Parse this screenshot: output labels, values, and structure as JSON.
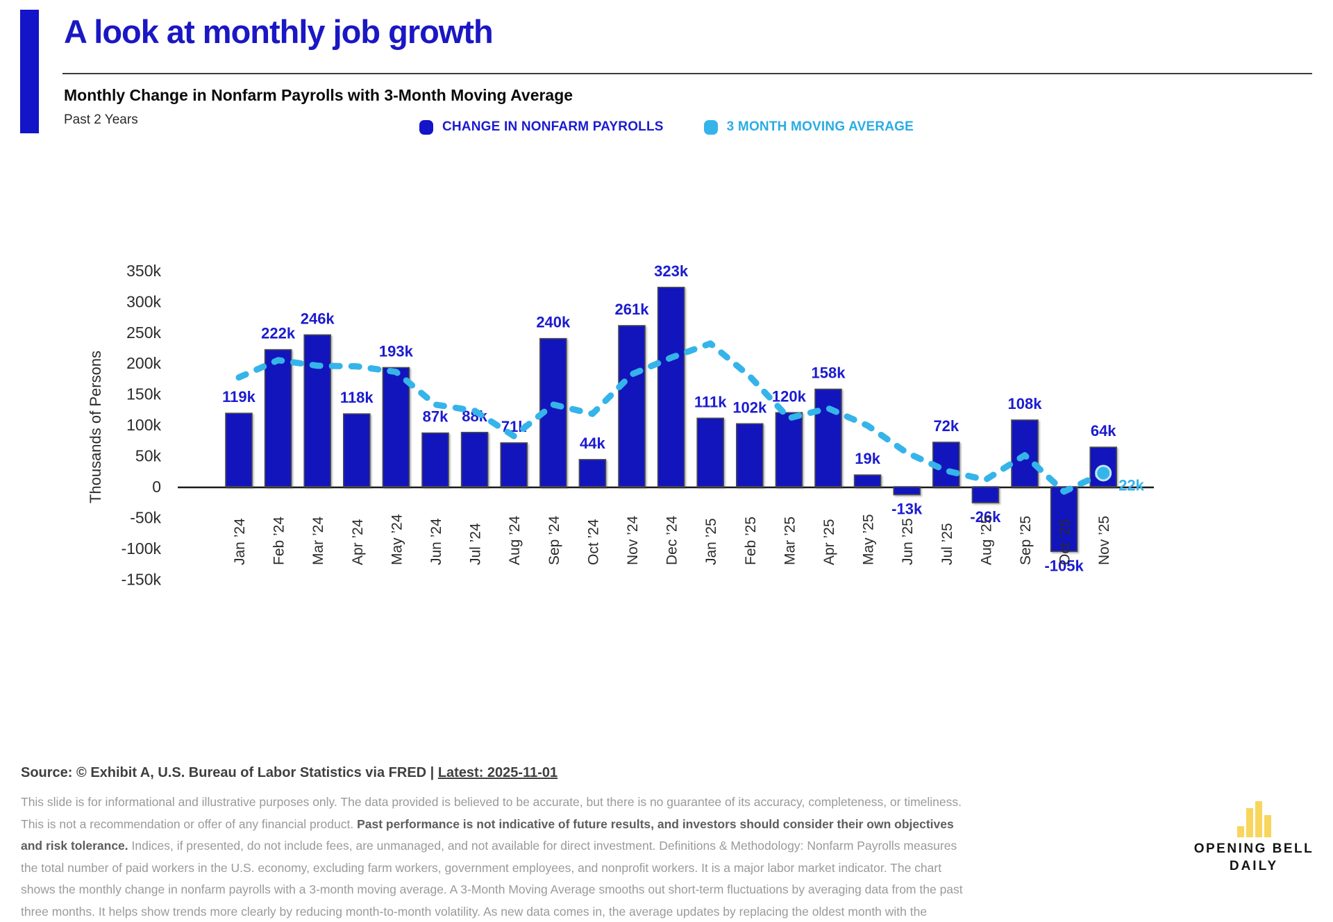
{
  "header": {
    "title": "A look at monthly job growth",
    "subtitle": "Monthly Change in Nonfarm Payrolls with 3-Month Moving Average",
    "period": "Past 2 Years"
  },
  "legend": [
    {
      "label": "CHANGE IN NONFARM PAYROLLS",
      "color": "#1414C8"
    },
    {
      "label": "3 MONTH MOVING AVERAGE",
      "color": "#35B4EA"
    }
  ],
  "chart_data": {
    "type": "bar",
    "title": "Monthly Change in Nonfarm Payrolls with 3-Month Moving Average",
    "xlabel": "",
    "ylabel": "Thousands of Persons",
    "unit": "thousands of persons (k)",
    "ylim": [
      -150,
      350
    ],
    "grid": false,
    "legend_position": "top",
    "categories": [
      "Jan ’24",
      "Feb ’24",
      "Mar ’24",
      "Apr ’24",
      "May ’24",
      "Jun ’24",
      "Jul ’24",
      "Aug ’24",
      "Sep ’24",
      "Oct ’24",
      "Nov ’24",
      "Dec ’24",
      "Jan ’25",
      "Feb ’25",
      "Mar ’25",
      "Apr ’25",
      "May ’25",
      "Jun ’25",
      "Jul ’25",
      "Aug ’25",
      "Sep ’25",
      "Oct ’25",
      "Nov ’25"
    ],
    "yticks": [
      350,
      300,
      250,
      200,
      150,
      100,
      50,
      0,
      -50,
      -100,
      -150
    ],
    "ytick_labels": [
      "350k",
      "300k",
      "250k",
      "200k",
      "150k",
      "100k",
      "50k",
      "0",
      "-50k",
      "-100k",
      "-150k"
    ],
    "series": [
      {
        "name": "Change in Nonfarm Payrolls",
        "type": "bar",
        "color": "#1215BC",
        "values": [
          119,
          222,
          246,
          118,
          193,
          87,
          88,
          71,
          240,
          44,
          261,
          323,
          111,
          102,
          120,
          158,
          19,
          -13,
          72,
          -26,
          108,
          -105,
          64
        ],
        "labels": [
          "119k",
          "222k",
          "246k",
          "118k",
          "193k",
          "87k",
          "88k",
          "71k",
          "240k",
          "44k",
          "261k",
          "323k",
          "111k",
          "102k",
          "120k",
          "158k",
          "19k",
          "-13k",
          "72k",
          "-26k",
          "108k",
          "-105k",
          "64k"
        ]
      },
      {
        "name": "3 Month Moving Average",
        "type": "line-dashed",
        "color": "#35B4EA",
        "values": [
          177,
          205,
          196,
          195,
          186,
          133,
          123,
          82,
          133,
          118,
          182,
          209,
          232,
          179,
          111,
          127,
          99,
          55,
          26,
          11,
          51,
          -8,
          22
        ],
        "end_label": "22k"
      }
    ]
  },
  "footer": {
    "source_prefix": "Source: © Exhibit A, U.S. Bureau of Labor Statistics via FRED | ",
    "source_latest": "Latest: 2025-11-01",
    "disclaimer_1": "This slide is for informational and illustrative purposes only. The data provided is believed to be accurate, but there is no guarantee of its accuracy, completeness, or timeliness. This is not a recommendation or offer of any financial product. ",
    "disclaimer_bold": "Past performance is not indicative of future results, and investors should consider their own objectives and risk tolerance.",
    "disclaimer_2": " Indices, if presented, do not include fees, are unmanaged, and not available for direct investment. Definitions & Methodology: Nonfarm Payrolls measures the total number of paid workers in the U.S. economy, excluding farm workers, government employees, and nonprofit workers. It is a major labor market indicator. The chart shows the monthly change in nonfarm payrolls with a 3-month moving average. A 3-Month Moving Average smooths out short-term fluctuations by averaging data from the past three months. It helps show trends more clearly by reducing month-to-month volatility. As new data comes in, the average updates by replacing the oldest month with the newest."
  },
  "logo": {
    "line1": "OPENING BELL",
    "line2": "DAILY",
    "bar_color": "#F8D55D"
  }
}
